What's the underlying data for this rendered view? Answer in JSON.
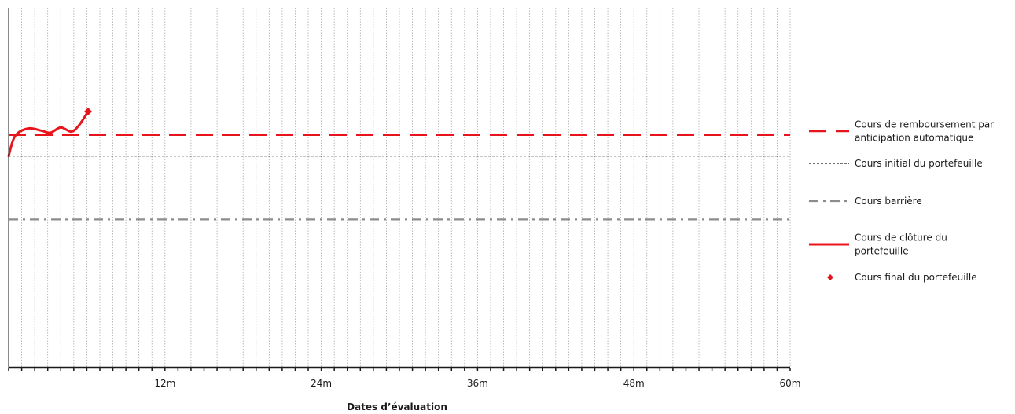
{
  "chart_data": {
    "type": "line",
    "xlabel": "Dates d’évaluation",
    "ylabel": "",
    "x_ticks": [
      {
        "value": 12,
        "label": "12m"
      },
      {
        "value": 24,
        "label": "24m"
      },
      {
        "value": 36,
        "label": "36m"
      },
      {
        "value": 48,
        "label": "48m"
      },
      {
        "value": 60,
        "label": "60m"
      }
    ],
    "xlim": [
      0,
      60
    ],
    "ylim": [
      0,
      1.7
    ],
    "grid": "vertical dotted monthly",
    "legend_position": "right",
    "series": [
      {
        "name": "Cours de remboursement par anticipation automatique",
        "style": "long-dash",
        "color": "#e8141c",
        "constant": 1.1
      },
      {
        "name": "Cours initial du portefeuille",
        "style": "short-dash",
        "color": "#1a1a1a",
        "constant": 1.0
      },
      {
        "name": "Cours barrière",
        "style": "dash-dot",
        "color": "#8c8c8c",
        "constant": 0.7
      },
      {
        "name": "Cours de clôture du portefeuille",
        "style": "solid",
        "color": "#e8141c",
        "x": [
          0,
          0.5,
          1.5,
          2.5,
          3.2,
          4,
          4.8,
          5.4,
          6.1
        ],
        "y": [
          1.0,
          1.095,
          1.13,
          1.12,
          1.11,
          1.135,
          1.115,
          1.145,
          1.21
        ]
      },
      {
        "name": "Cours final du portefeuille",
        "style": "marker-diamond",
        "color": "#e8141c",
        "x": [
          6.1
        ],
        "y": [
          1.21
        ]
      }
    ],
    "legend": [
      {
        "lines": [
          "Cours de remboursement par",
          "anticipation automatique"
        ]
      },
      {
        "lines": [
          "Cours initial du portefeuille"
        ]
      },
      {
        "lines": [
          "Cours barrière"
        ]
      },
      {
        "lines": [
          "Cours de clôture du",
          "portefeuille"
        ]
      },
      {
        "lines": [
          "Cours final du portefeuille"
        ]
      }
    ]
  }
}
